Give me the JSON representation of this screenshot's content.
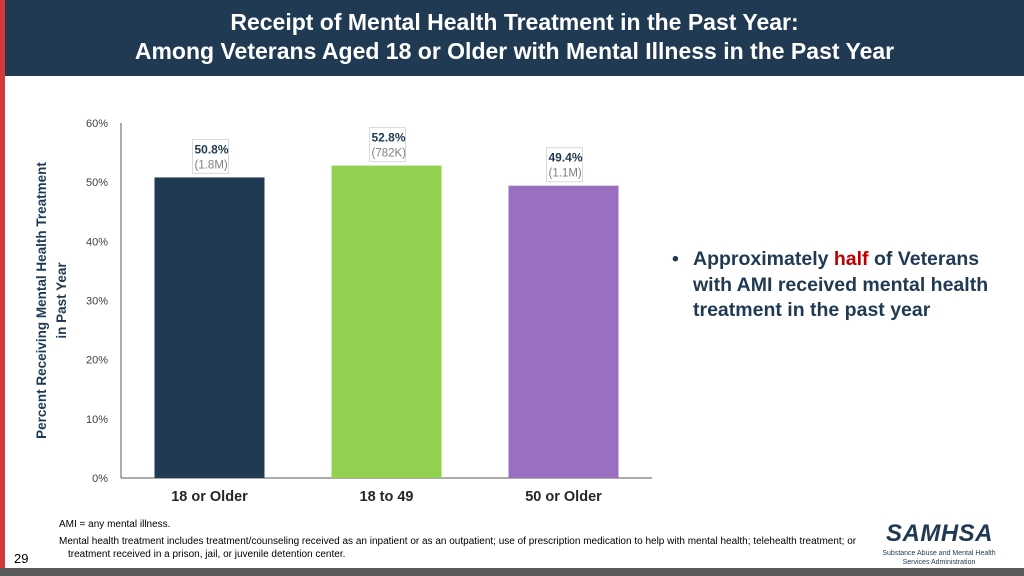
{
  "header": {
    "title_line1": "Receipt of Mental Health Treatment in the Past Year:",
    "title_line2": "Among Veterans Aged 18 or Older with Mental Illness in the Past Year"
  },
  "chart_data": {
    "type": "bar",
    "title": "Receipt of Mental Health Treatment in the Past Year: Among Veterans Aged 18 or Older with Mental Illness in the Past Year",
    "ylabel_line1": "Percent Receiving Mental Health Treatment",
    "ylabel_line2": "in Past Year",
    "xlabel": "",
    "ylim": [
      0,
      60
    ],
    "yticks": [
      0,
      10,
      20,
      30,
      40,
      50,
      60
    ],
    "ytick_labels": [
      "0%",
      "10%",
      "20%",
      "30%",
      "40%",
      "50%",
      "60%"
    ],
    "categories": [
      "18 or Older",
      "18 to 49",
      "50 or Older"
    ],
    "values": [
      50.8,
      52.8,
      49.4
    ],
    "value_labels": [
      "50.8%",
      "52.8%",
      "49.4%"
    ],
    "count_labels": [
      "(1.8M)",
      "(782K)",
      "(1.1M)"
    ],
    "colors": [
      "#1f3a52",
      "#92d050",
      "#9b6fbf"
    ],
    "grid": false
  },
  "bullet": {
    "symbol": "•",
    "pre": "Approximately ",
    "highlight": "half",
    "post": " of Veterans with AMI received mental health treatment in the past year"
  },
  "notes": {
    "ami": "AMI = any mental illness.",
    "definition": "Mental health treatment includes treatment/counseling received as an inpatient or as an outpatient; use of prescription medication to help with mental health; telehealth treatment; or treatment received in a prison, jail, or juvenile detention center."
  },
  "page_number": "29",
  "logo": {
    "wordmark": "SAMHSA",
    "subtitle": "Substance Abuse and Mental Health Services Administration"
  },
  "colors": {
    "header_bg": "#1f3a52",
    "accent_red": "#c00000",
    "bullet_text": "#1f3a52"
  }
}
